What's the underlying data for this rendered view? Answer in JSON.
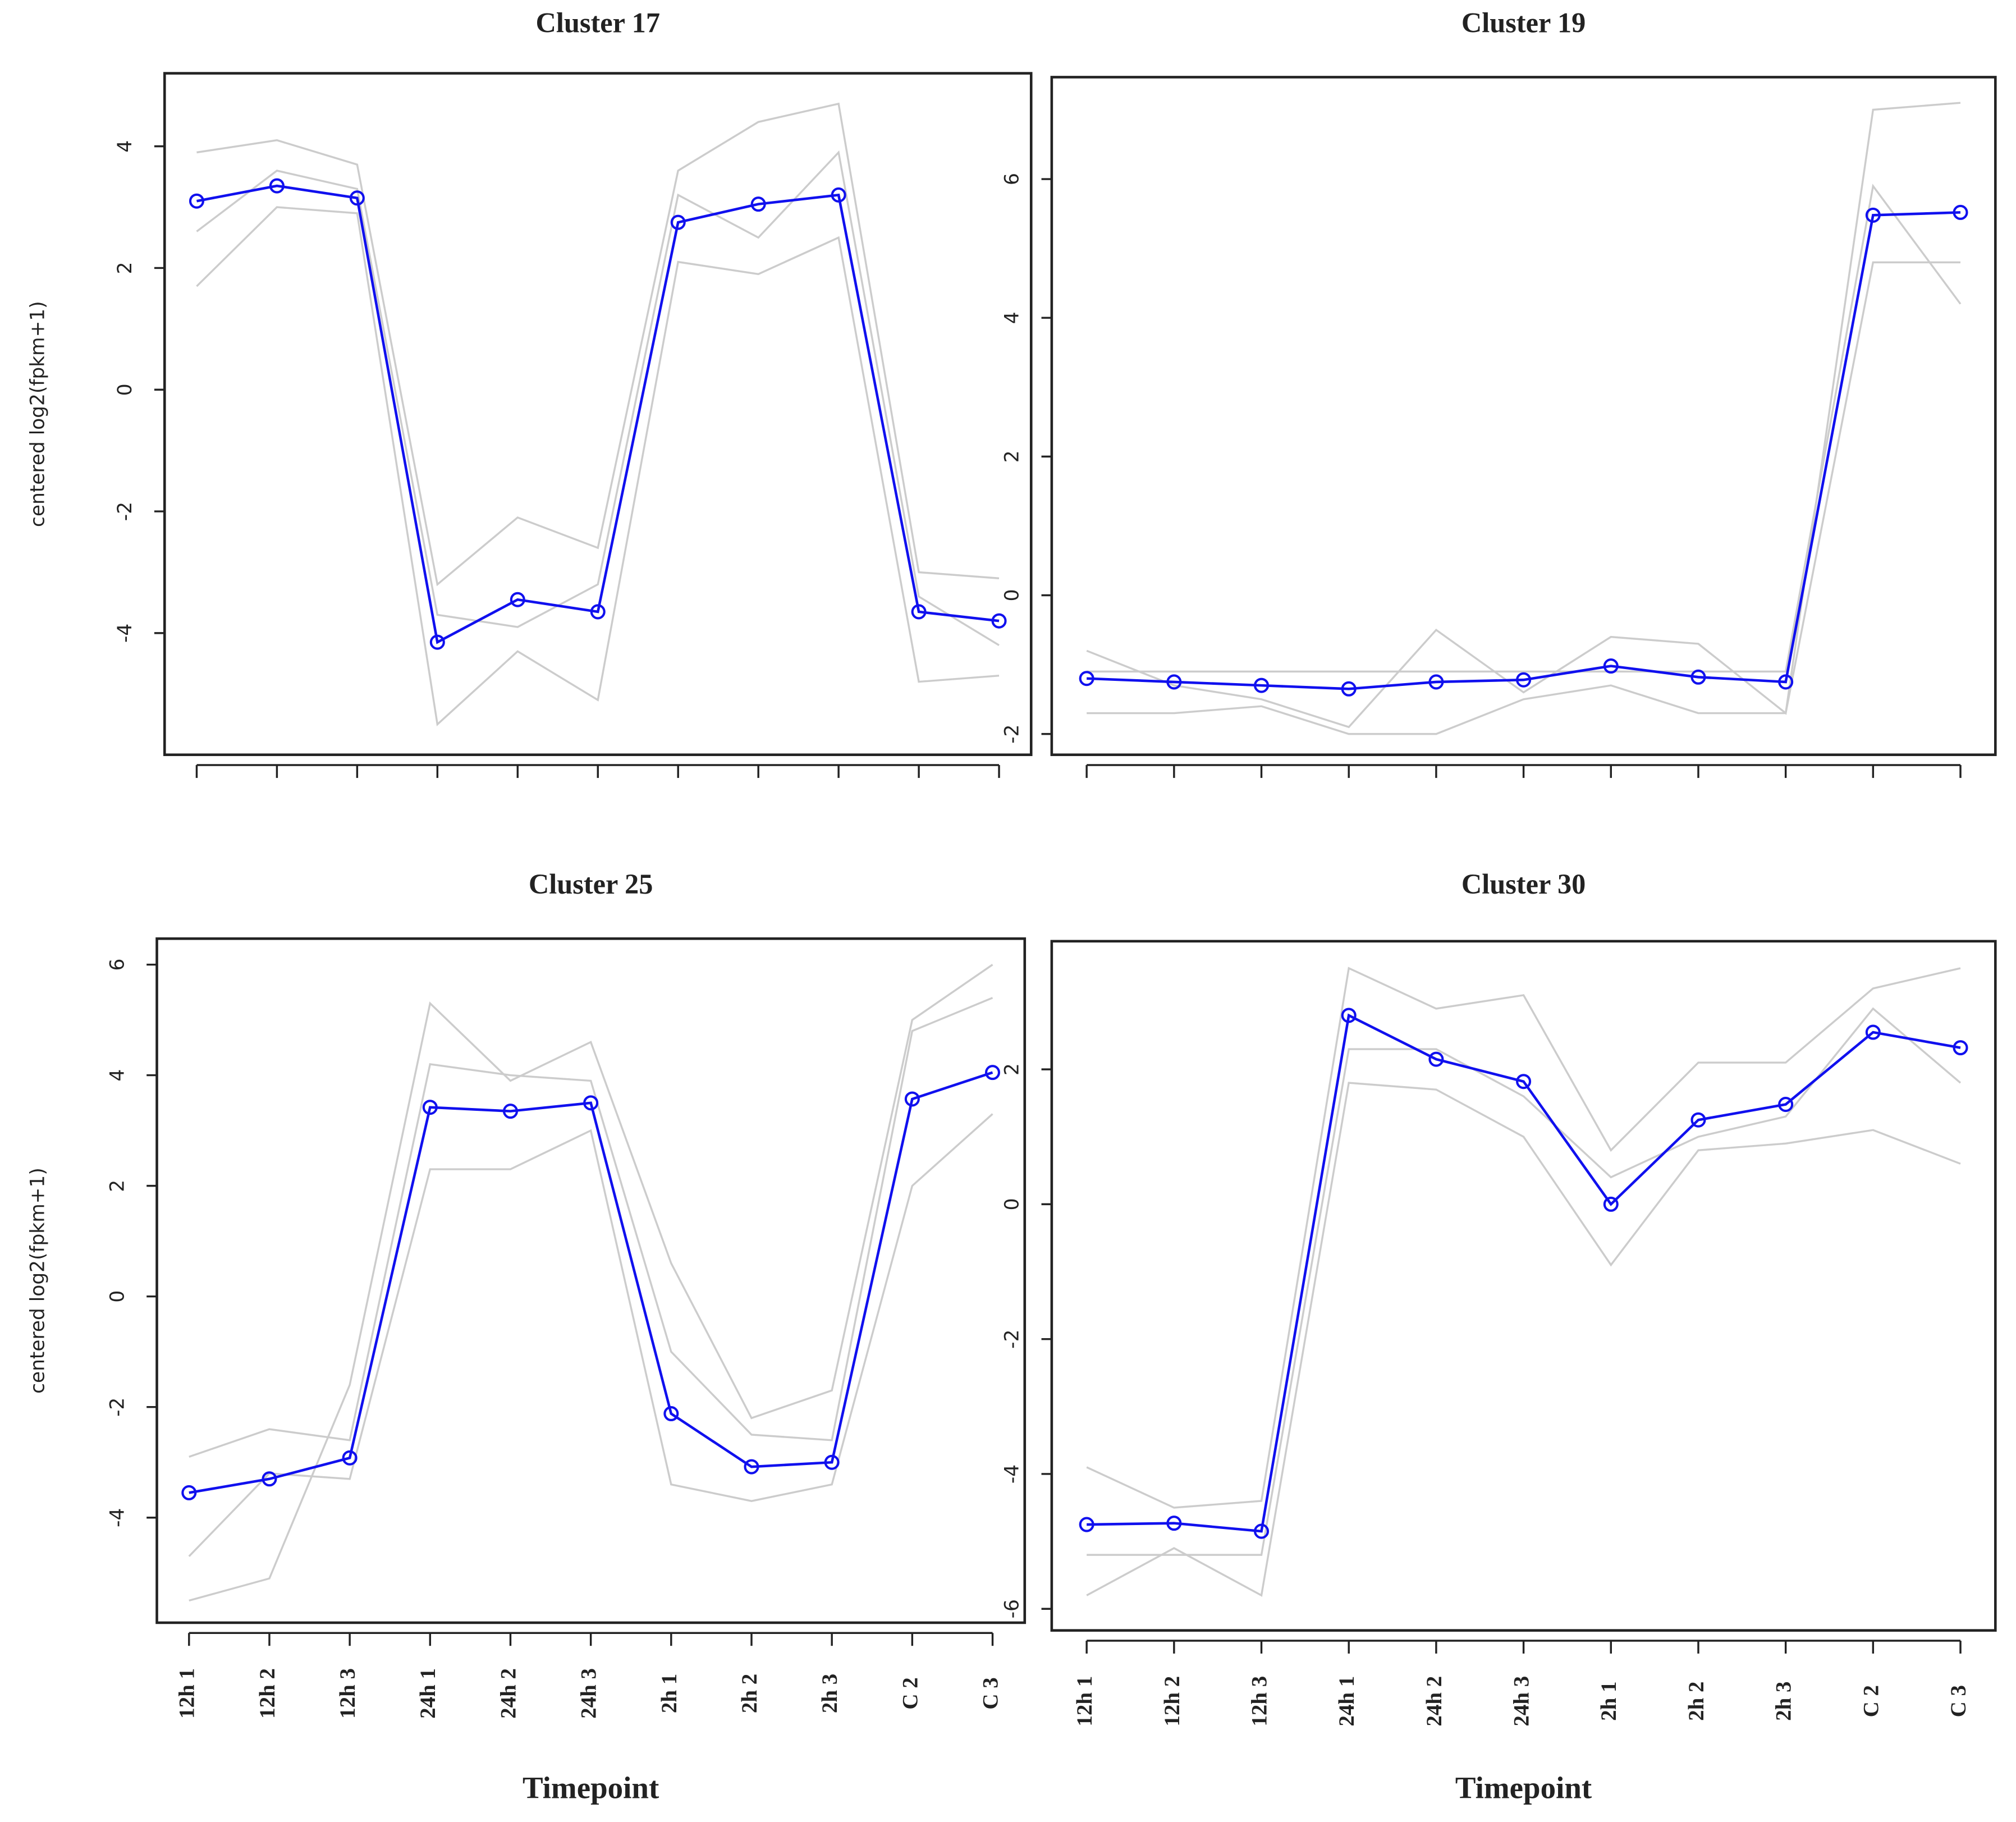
{
  "chart_data": [
    {
      "type": "line",
      "title": "Cluster 17",
      "y_label": "centered log2(fpkm+1)",
      "categories": [
        null,
        null,
        null,
        null,
        null,
        null,
        null,
        null,
        null,
        null,
        null
      ],
      "ylim": [
        -6,
        5.2
      ],
      "yticks": [
        -4,
        -2,
        0,
        2,
        4
      ],
      "series": [
        {
          "color": "#1010ee",
          "values": [
            3.1,
            3.35,
            3.15,
            -4.15,
            -3.45,
            -3.65,
            2.75,
            3.05,
            3.2,
            -3.65,
            -3.8
          ]
        }
      ],
      "background_series": [
        {
          "color": "#cccccc",
          "values": [
            3.9,
            4.1,
            3.7,
            -3.2,
            -2.1,
            -2.6,
            3.6,
            4.4,
            4.7,
            -3.0,
            -3.1
          ]
        },
        {
          "color": "#cccccc",
          "values": [
            1.7,
            3.0,
            2.9,
            -5.5,
            -4.3,
            -5.1,
            2.1,
            1.9,
            2.5,
            -4.8,
            -4.7
          ]
        },
        {
          "color": "#cccccc",
          "values": [
            2.6,
            3.6,
            3.3,
            -3.7,
            -3.9,
            -3.2,
            3.2,
            2.5,
            3.9,
            -3.4,
            -4.2
          ]
        }
      ]
    },
    {
      "type": "line",
      "title": "Cluster 19",
      "categories": [
        null,
        null,
        null,
        null,
        null,
        null,
        null,
        null,
        null,
        null,
        null
      ],
      "ylim": [
        -2.3,
        7.47
      ],
      "yticks": [
        -2,
        0,
        2,
        4,
        6
      ],
      "series": [
        {
          "color": "#1010ee",
          "values": [
            -1.2,
            -1.25,
            -1.3,
            -1.35,
            -1.25,
            -1.22,
            -1.02,
            -1.18,
            -1.25,
            5.48,
            5.52
          ]
        }
      ],
      "background_series": [
        {
          "color": "#cccccc",
          "values": [
            -0.8,
            -1.3,
            -1.5,
            -1.9,
            -0.5,
            -1.4,
            -0.6,
            -0.7,
            -1.7,
            7.0,
            7.1
          ]
        },
        {
          "color": "#cccccc",
          "values": [
            -1.7,
            -1.7,
            -1.6,
            -2.0,
            -2.0,
            -1.5,
            -1.3,
            -1.7,
            -1.7,
            4.8,
            4.8
          ]
        },
        {
          "color": "#cccccc",
          "values": [
            -1.1,
            -1.1,
            -1.1,
            -1.1,
            -1.1,
            -1.1,
            -1.1,
            -1.1,
            -1.1,
            5.9,
            4.2
          ]
        }
      ]
    },
    {
      "type": "line",
      "title": "Cluster 25",
      "y_label": "centered log2(fpkm+1)",
      "x_label": "Timepoint",
      "categories": [
        "12h 1",
        "12h 2",
        "12h 3",
        "24h 1",
        "24h 2",
        "24h 3",
        "2h 1",
        "2h 2",
        "2h 3",
        "C 2",
        "C 3"
      ],
      "ylim": [
        -5.9,
        6.47
      ],
      "yticks": [
        -4,
        -2,
        0,
        2,
        4,
        6
      ],
      "series": [
        {
          "color": "#1010ee",
          "values": [
            -3.55,
            -3.3,
            -2.92,
            3.42,
            3.35,
            3.5,
            -2.12,
            -3.08,
            -3.0,
            3.57,
            4.05
          ]
        }
      ],
      "background_series": [
        {
          "color": "#cccccc",
          "values": [
            -5.5,
            -5.1,
            -1.6,
            5.3,
            3.9,
            4.6,
            0.6,
            -2.2,
            -1.7,
            5.0,
            6.0
          ]
        },
        {
          "color": "#cccccc",
          "values": [
            -4.7,
            -3.2,
            -3.3,
            2.3,
            2.3,
            3.0,
            -3.4,
            -3.7,
            -3.4,
            2.0,
            3.3
          ]
        },
        {
          "color": "#cccccc",
          "values": [
            -2.9,
            -2.4,
            -2.6,
            4.2,
            4.0,
            3.9,
            -1.0,
            -2.5,
            -2.6,
            4.8,
            5.4
          ]
        }
      ]
    },
    {
      "type": "line",
      "title": "Cluster 30",
      "x_label": "Timepoint",
      "categories": [
        "12h 1",
        "12h 2",
        "12h 3",
        "24h 1",
        "24h 2",
        "24h 3",
        "2h 1",
        "2h 2",
        "2h 3",
        "C 2",
        "C 3"
      ],
      "ylim": [
        -6.32,
        3.9
      ],
      "yticks": [
        -6,
        -4,
        -2,
        0,
        2
      ],
      "series": [
        {
          "color": "#1010ee",
          "values": [
            -4.75,
            -4.73,
            -4.85,
            2.8,
            2.15,
            1.82,
            0.0,
            1.25,
            1.48,
            2.55,
            2.32
          ]
        }
      ],
      "background_series": [
        {
          "color": "#cccccc",
          "values": [
            -3.9,
            -4.5,
            -4.4,
            3.5,
            2.9,
            3.1,
            0.8,
            2.1,
            2.1,
            3.2,
            3.5
          ]
        },
        {
          "color": "#cccccc",
          "values": [
            -5.8,
            -5.1,
            -5.8,
            1.8,
            1.7,
            1.0,
            -0.9,
            0.8,
            0.9,
            1.1,
            0.6
          ]
        },
        {
          "color": "#cccccc",
          "values": [
            -5.2,
            -5.2,
            -5.2,
            2.3,
            2.3,
            1.6,
            0.4,
            1.0,
            1.3,
            2.9,
            1.8
          ]
        }
      ]
    }
  ]
}
